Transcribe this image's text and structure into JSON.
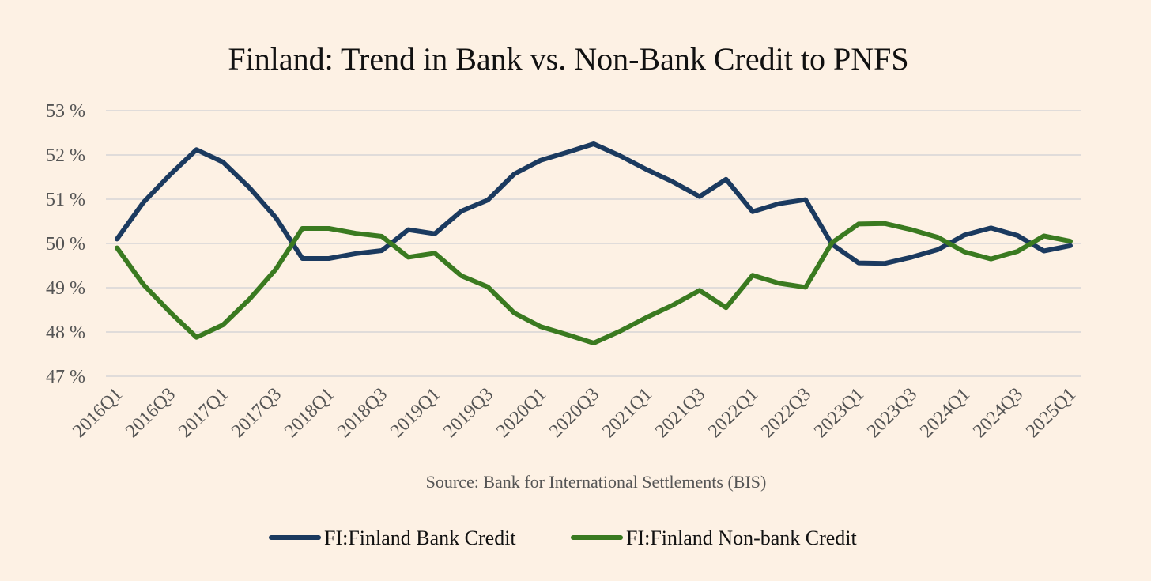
{
  "colors": {
    "background": "#fdf1e4",
    "bank": "#1b3a5f",
    "nonbank": "#3a7a20",
    "grid": "#d6d6d6"
  },
  "chart_data": {
    "type": "line",
    "title": "Finland: Trend in Bank vs. Non-Bank Credit to PNFS",
    "source": "Source: Bank for International Settlements (BIS)",
    "xlabel": "",
    "ylabel": "",
    "ylim": [
      47,
      53
    ],
    "yticks": [
      "47 %",
      "48 %",
      "49 %",
      "50 %",
      "51 %",
      "52 %",
      "53 %"
    ],
    "grid": true,
    "legend_position": "bottom",
    "x": [
      "2016Q1",
      "2016Q2",
      "2016Q3",
      "2016Q4",
      "2017Q1",
      "2017Q2",
      "2017Q3",
      "2017Q4",
      "2018Q1",
      "2018Q2",
      "2018Q3",
      "2018Q4",
      "2019Q1",
      "2019Q2",
      "2019Q3",
      "2019Q4",
      "2020Q1",
      "2020Q2",
      "2020Q3",
      "2020Q4",
      "2021Q1",
      "2021Q2",
      "2021Q3",
      "2021Q4",
      "2022Q1",
      "2022Q2",
      "2022Q3",
      "2022Q4",
      "2023Q1",
      "2023Q2",
      "2023Q3",
      "2023Q4",
      "2024Q1",
      "2024Q2",
      "2024Q3",
      "2024Q4",
      "2025Q1"
    ],
    "xtick_labels": [
      "2016Q1",
      "2016Q3",
      "2017Q1",
      "2017Q3",
      "2018Q1",
      "2018Q3",
      "2019Q1",
      "2019Q3",
      "2020Q1",
      "2020Q3",
      "2021Q1",
      "2021Q3",
      "2022Q1",
      "2022Q3",
      "2023Q1",
      "2023Q3",
      "2024Q1",
      "2024Q3",
      "2025Q1"
    ],
    "series": [
      {
        "name": "FI:Finland Bank Credit",
        "values": [
          50.1,
          50.93,
          51.55,
          52.12,
          51.84,
          51.26,
          50.58,
          49.66,
          49.66,
          49.77,
          49.84,
          50.31,
          50.22,
          50.73,
          50.98,
          51.57,
          51.88,
          52.06,
          52.25,
          51.98,
          51.67,
          51.39,
          51.06,
          51.45,
          50.72,
          50.9,
          50.99,
          49.98,
          49.56,
          49.55,
          49.69,
          49.86,
          50.19,
          50.35,
          50.18,
          49.83,
          49.95
        ]
      },
      {
        "name": "FI:Finland Non-bank Credit",
        "values": [
          49.9,
          49.07,
          48.45,
          47.88,
          48.16,
          48.74,
          49.42,
          50.34,
          50.34,
          50.23,
          50.16,
          49.69,
          49.78,
          49.27,
          49.02,
          48.43,
          48.12,
          47.94,
          47.75,
          48.02,
          48.33,
          48.61,
          48.94,
          48.55,
          49.28,
          49.1,
          49.01,
          50.02,
          50.44,
          50.45,
          50.31,
          50.14,
          49.81,
          49.65,
          49.82,
          50.17,
          50.05
        ]
      }
    ]
  }
}
